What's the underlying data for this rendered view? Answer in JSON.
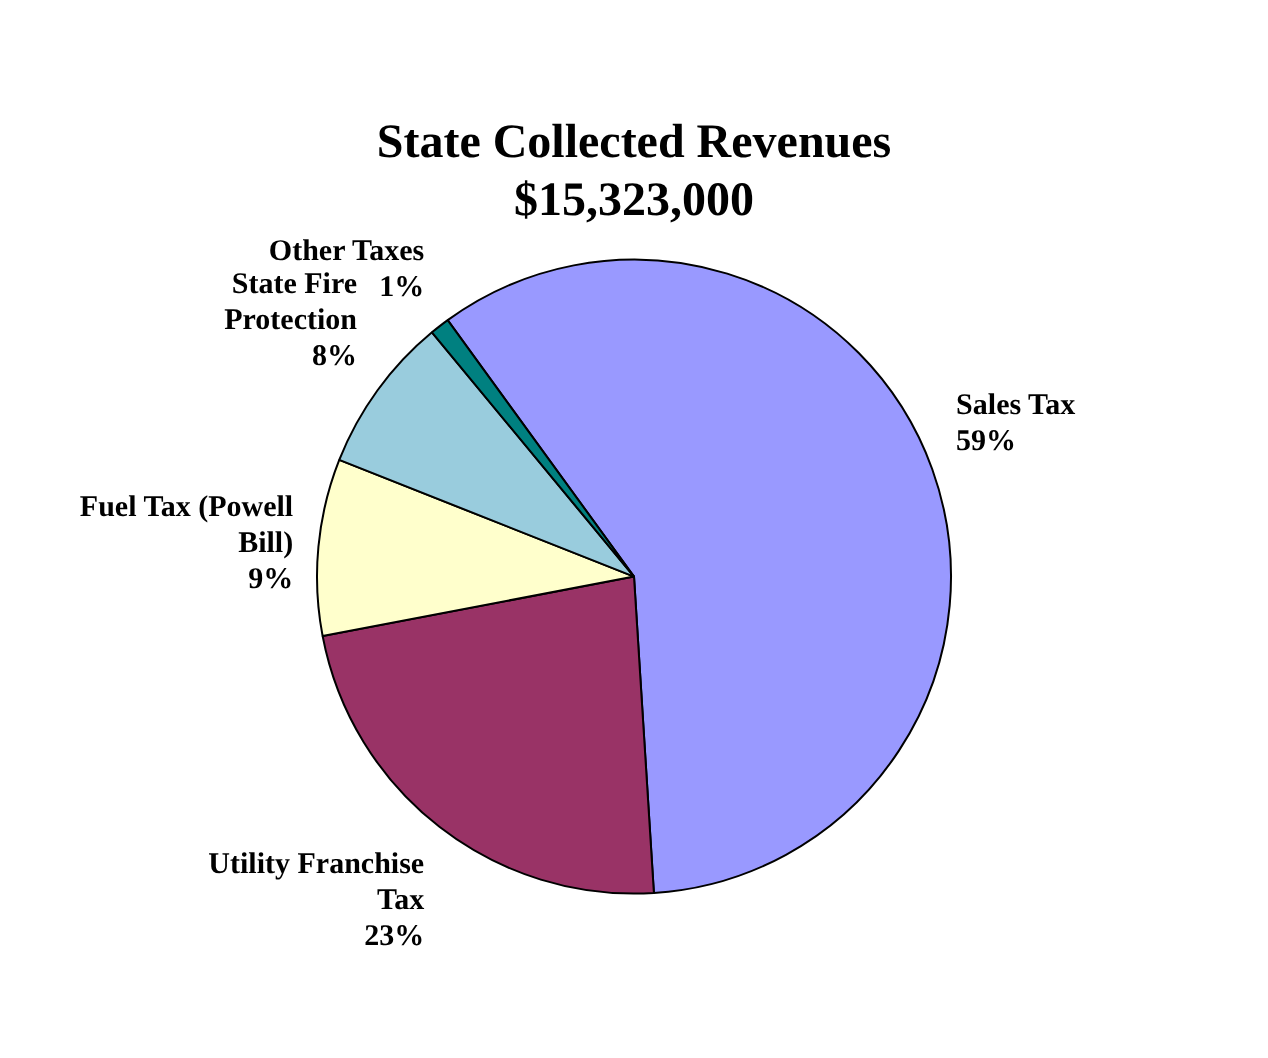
{
  "chart_data": {
    "type": "pie",
    "title": "State Collected Revenues",
    "subtitle": "$15,323,000",
    "categories": [
      "Sales Tax",
      "Utility Franchise Tax",
      "Fuel Tax (Powell Bill)",
      "State Fire Protection",
      "Other Taxes"
    ],
    "values": [
      59,
      23,
      9,
      8,
      1
    ],
    "value_labels": [
      "59%",
      "23%",
      "9%",
      "8%",
      "1%"
    ],
    "colors": [
      "#9999ff",
      "#993366",
      "#ffffcc",
      "#99ccdd",
      "#008080"
    ],
    "legend": false
  }
}
